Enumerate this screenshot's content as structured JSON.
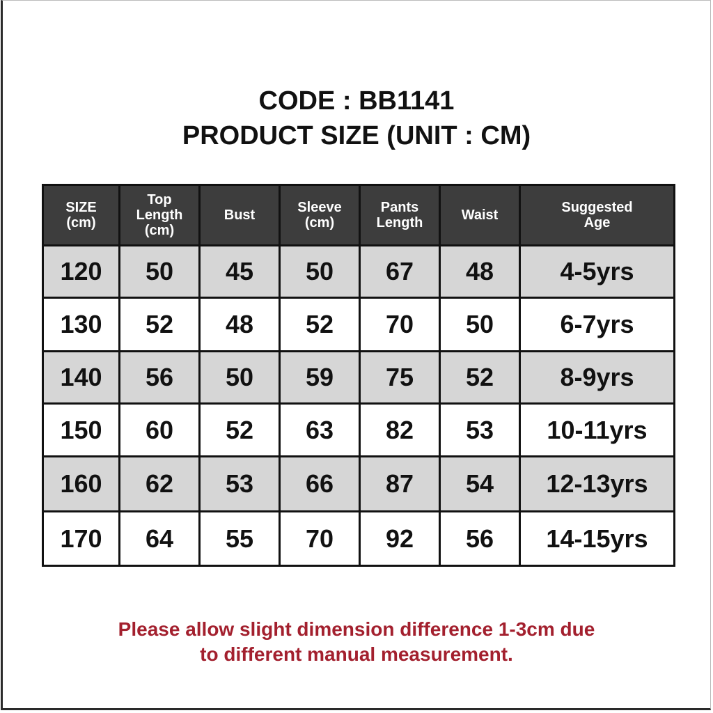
{
  "title": {
    "code": "CODE : BB1141",
    "subtitle": "PRODUCT SIZE (UNIT : CM)"
  },
  "table": {
    "headers": [
      [
        "SIZE",
        "(cm)"
      ],
      [
        "Top",
        "Length",
        "(cm)"
      ],
      [
        "Bust"
      ],
      [
        "Sleeve",
        "(cm)"
      ],
      [
        "Pants",
        "Length"
      ],
      [
        "Waist"
      ],
      [
        "Suggested",
        "Age"
      ]
    ],
    "rows": [
      [
        "120",
        "50",
        "45",
        "50",
        "67",
        "48",
        "4-5yrs"
      ],
      [
        "130",
        "52",
        "48",
        "52",
        "70",
        "50",
        "6-7yrs"
      ],
      [
        "140",
        "56",
        "50",
        "59",
        "75",
        "52",
        "8-9yrs"
      ],
      [
        "150",
        "60",
        "52",
        "63",
        "82",
        "53",
        "10-11yrs"
      ],
      [
        "160",
        "62",
        "53",
        "66",
        "87",
        "54",
        "12-13yrs"
      ],
      [
        "170",
        "64",
        "55",
        "70",
        "92",
        "56",
        "14-15yrs"
      ]
    ]
  },
  "note": {
    "line1": "Please allow slight dimension difference 1-3cm due",
    "line2": "to different manual measurement."
  },
  "colors": {
    "header_bg": "#3d3d3d",
    "stripe": "#d6d6d6",
    "note": "#a3202e"
  }
}
